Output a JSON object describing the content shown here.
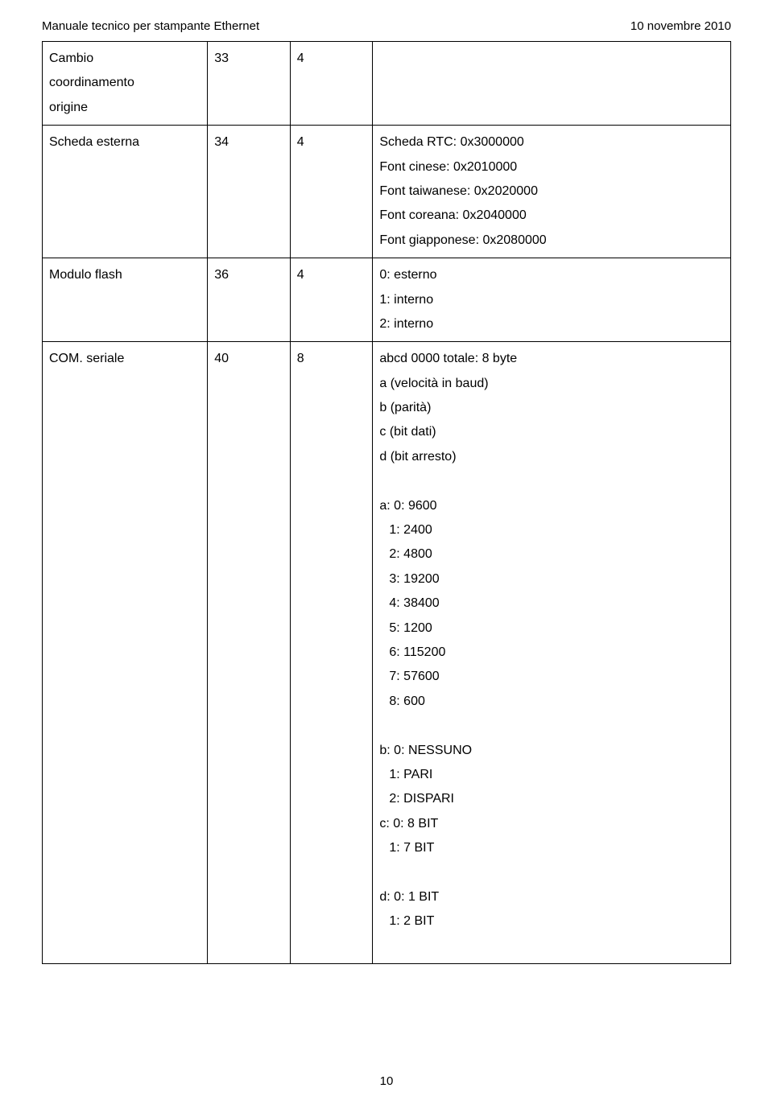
{
  "header": {
    "left": "Manuale tecnico per stampante Ethernet",
    "right": "10 novembre 2010"
  },
  "rows": {
    "r1": {
      "c1a": "Cambio",
      "c1b": "coordinamento",
      "c1c": "origine",
      "c2": "33",
      "c3": "4",
      "c4": ""
    },
    "r2": {
      "c1": "Scheda esterna",
      "c2": "34",
      "c3": "4",
      "c4a": "Scheda RTC: 0x3000000",
      "c4b": "Font cinese: 0x2010000",
      "c4c": "Font taiwanese: 0x2020000",
      "c4d": "Font coreana: 0x2040000",
      "c4e": "Font giapponese: 0x2080000"
    },
    "r3": {
      "c1": "Modulo flash",
      "c2": "36",
      "c3": "4",
      "c4a": "0: esterno",
      "c4b": "1: interno",
      "c4c": "2: interno"
    },
    "r4": {
      "c1": "COM. seriale",
      "c2": "40",
      "c3": "8",
      "g1a": "abcd 0000     totale: 8 byte",
      "g1b": "a (velocità in baud)",
      "g1c": "b (parità)",
      "g1d": "c (bit dati)",
      "g1e": "d (bit arresto)",
      "g2a": "a: 0: 9600",
      "g2b": "1: 2400",
      "g2c": "2: 4800",
      "g2d": "3: 19200",
      "g2e": "4: 38400",
      "g2f": "5: 1200",
      "g2g": "6: 115200",
      "g2h": "7: 57600",
      "g2i": "8: 600",
      "g3a": "b: 0: NESSUNO",
      "g3b": "1: PARI",
      "g3c": "2: DISPARI",
      "g4a": "c: 0: 8 BIT",
      "g4b": "1: 7 BIT",
      "g5a": "d: 0: 1 BIT",
      "g5b": "1: 2 BIT"
    }
  },
  "page_number": "10"
}
